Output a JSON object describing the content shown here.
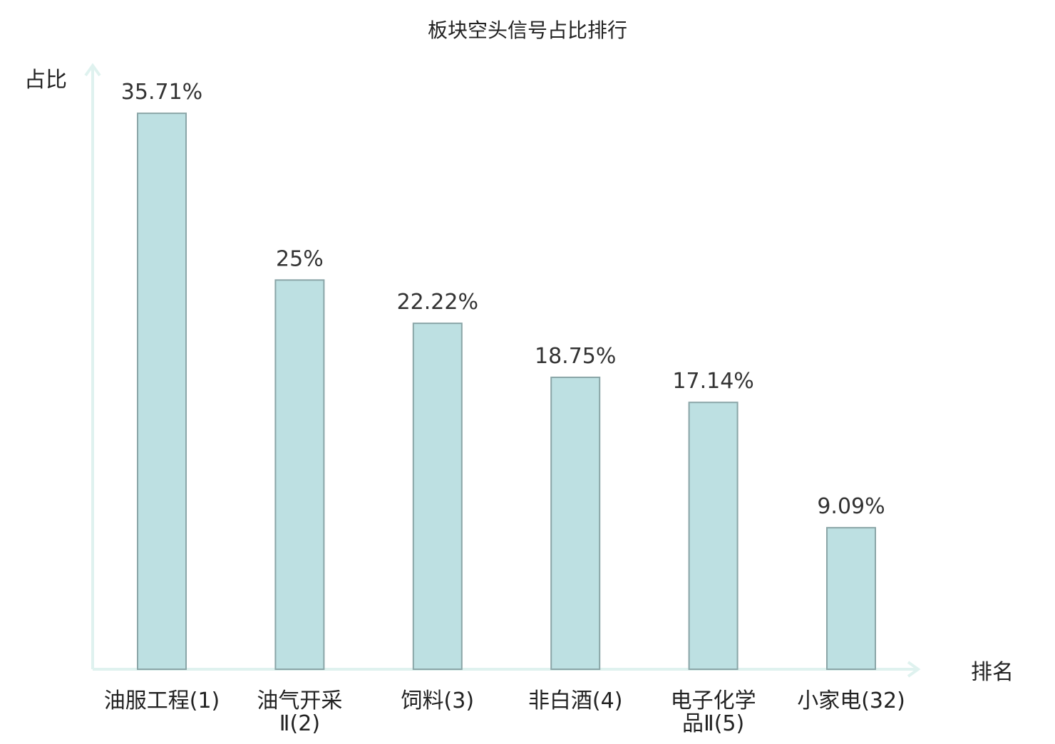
{
  "chart_data": {
    "type": "bar",
    "title": "板块空头信号占比排行",
    "ylabel": "占比",
    "xlabel": "排名",
    "categories": [
      [
        "油服工程(1)"
      ],
      [
        "油气开采",
        "Ⅱ(2)"
      ],
      [
        "饲料(3)"
      ],
      [
        "非白酒(4)"
      ],
      [
        "电子化学",
        "品Ⅱ(5)"
      ],
      [
        "小家电(32)"
      ]
    ],
    "values": [
      35.71,
      25,
      22.22,
      18.75,
      17.14,
      9.09
    ],
    "value_labels": [
      "35.71%",
      "25%",
      "22.22%",
      "18.75%",
      "17.14%",
      "9.09%"
    ],
    "highlight_index": 5,
    "ylim": [
      0,
      37.5
    ],
    "grid": false,
    "legend": "none",
    "colors": {
      "bar_fill": "#bde0e2",
      "bar_stroke": "#8aa5a7",
      "axis": "#dff2ef",
      "text": "#222222",
      "value_text": "#333333",
      "highlight_text": "#e0191b"
    }
  }
}
